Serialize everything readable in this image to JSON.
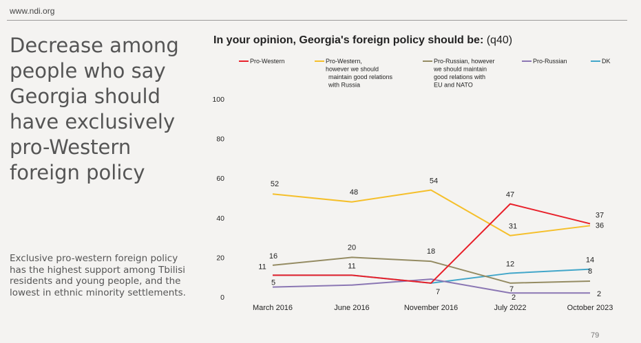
{
  "header": {
    "site": "www.ndi.org"
  },
  "headline": "Decrease among people who say Georgia should have exclusively pro-Western foreign policy",
  "body_text": "Exclusive pro-western foreign policy has the highest support among Tbilisi residents and young people, and the lowest in ethnic minority settlements.",
  "chart_title": {
    "bold": "In your opinion, Georgia's foreign policy should be:",
    "normal": "(q40)"
  },
  "page_number": "79",
  "chart_data": {
    "type": "line",
    "title": "In your opinion, Georgia's foreign policy should be: (q40)",
    "categories": [
      "March 2016",
      "June 2016",
      "November 2016",
      "July 2022",
      "October 2023"
    ],
    "ylim": [
      0,
      100
    ],
    "yticks": [
      0,
      20,
      40,
      60,
      80,
      100
    ],
    "grid": false,
    "legend_position": "top",
    "series": [
      {
        "name": "Pro-Western",
        "legend_lines": [
          "Pro-Western"
        ],
        "color": "#e8202a",
        "values": [
          11,
          11,
          7,
          47,
          37
        ],
        "labels": [
          "11",
          "11",
          "7",
          "47",
          "37"
        ]
      },
      {
        "name": "Pro-Western, however we should maintain good relations with Russia",
        "legend_lines": [
          "Pro-Western,",
          "however we should",
          "maintain good relations",
          "with Russia"
        ],
        "color": "#f5bf2a",
        "values": [
          52,
          48,
          54,
          31,
          36
        ],
        "labels": [
          "52",
          "48",
          "54",
          "31",
          "36"
        ]
      },
      {
        "name": "Pro-Russian, however we should maintain good relations with EU and NATO",
        "legend_lines": [
          "Pro-Russian, however",
          "we should maintain",
          "good relations with",
          "EU and NATO"
        ],
        "color": "#948b62",
        "values": [
          16,
          20,
          18,
          7,
          8
        ],
        "labels": [
          "16",
          "20",
          "18",
          "7",
          "8"
        ]
      },
      {
        "name": "Pro-Russian",
        "legend_lines": [
          "Pro-Russian"
        ],
        "color": "#8a76b3",
        "values": [
          5,
          6,
          9,
          2,
          2
        ],
        "labels": [
          "5",
          "",
          "",
          "2",
          "2"
        ]
      },
      {
        "name": "DK",
        "legend_lines": [
          "DK"
        ],
        "color": "#41a6c9",
        "values": [
          11,
          11,
          7,
          12,
          14
        ],
        "labels": [
          "",
          "",
          "",
          "12",
          "14"
        ]
      }
    ]
  }
}
